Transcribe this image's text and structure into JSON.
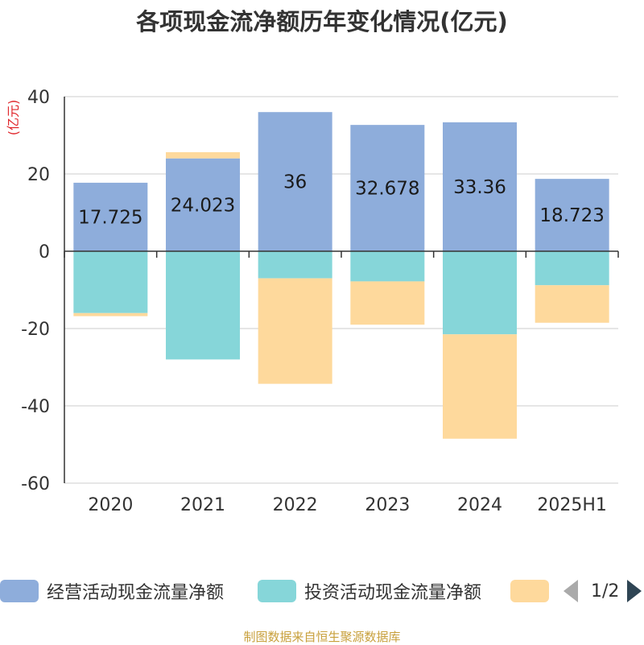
{
  "title": "各项现金流净额历年变化情况(亿元)",
  "source": "制图数据来自恒生聚源数据库",
  "legend": {
    "items": [
      {
        "label": "经营活动现金流量净额",
        "color": "#8eaddb"
      },
      {
        "label": "投资活动现金流量净额",
        "color": "#86d6d9"
      },
      {
        "label": "",
        "color": "#fed99c"
      }
    ],
    "page": "1/2"
  },
  "chart_data": {
    "type": "bar",
    "stacked": true,
    "categories": [
      "2020",
      "2021",
      "2022",
      "2023",
      "2024",
      "2025H1"
    ],
    "ylabel": "(亿元)",
    "ylim": [
      -60,
      40
    ],
    "yticks": [
      40,
      20,
      0,
      -20,
      -40,
      -60
    ],
    "grid": true,
    "legend_position": "bottom",
    "series": [
      {
        "name": "经营活动现金流量净额",
        "color": "#8eaddb",
        "values": [
          17.725,
          24.023,
          36,
          32.678,
          33.36,
          18.723
        ],
        "labels": [
          "17.725",
          "24.023",
          "36",
          "32.678",
          "33.36",
          "18.723"
        ]
      },
      {
        "name": "投资活动现金流量净额",
        "color": "#86d6d9",
        "values": [
          -16,
          -28,
          -7,
          -7.8,
          -21.5,
          -8.8
        ]
      },
      {
        "name": "",
        "color": "#fed99c",
        "values": [
          -0.8,
          1.6,
          -27.3,
          -11.2,
          -27,
          -9.7
        ]
      }
    ]
  }
}
